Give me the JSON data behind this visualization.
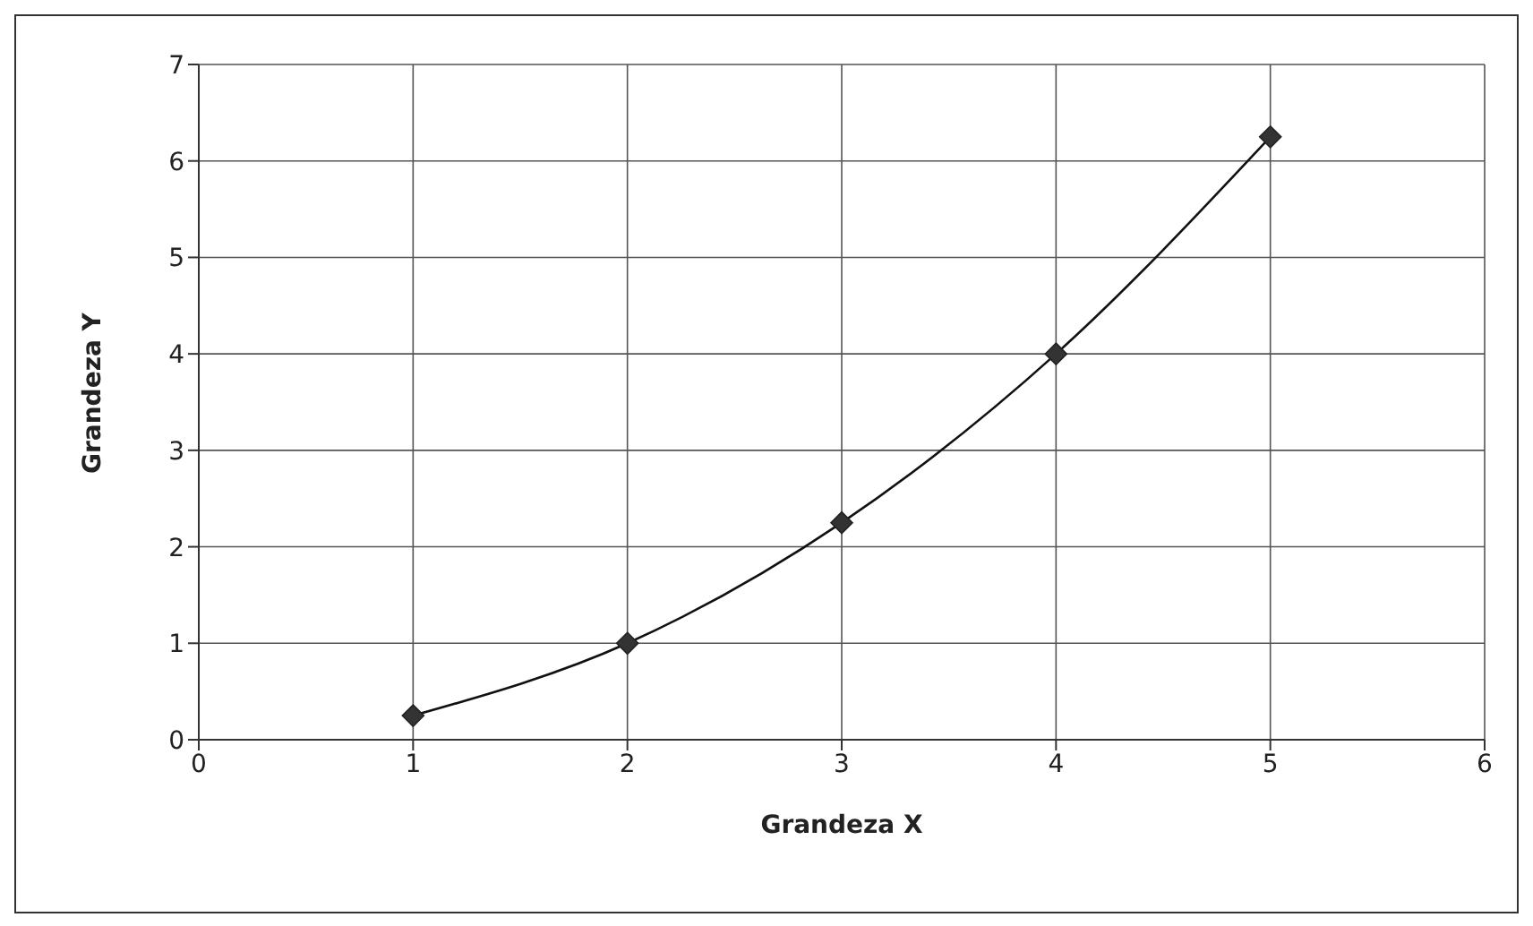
{
  "chart_data": {
    "type": "line",
    "xlabel": "Grandeza X",
    "ylabel": "Grandeza Y",
    "x": [
      1,
      2,
      3,
      4,
      5
    ],
    "series": [
      {
        "color": "#333333",
        "values": [
          0.25,
          1,
          2.25,
          4,
          6.25
        ]
      }
    ],
    "xlim": [
      0,
      6
    ],
    "xticks": [
      0,
      1,
      2,
      3,
      4,
      5,
      6
    ],
    "ylim": [
      0,
      7
    ],
    "yticks": [
      0,
      1,
      2,
      3,
      4,
      5,
      6,
      7
    ],
    "grid": true,
    "marker": "diamond",
    "line_style": "solid"
  }
}
